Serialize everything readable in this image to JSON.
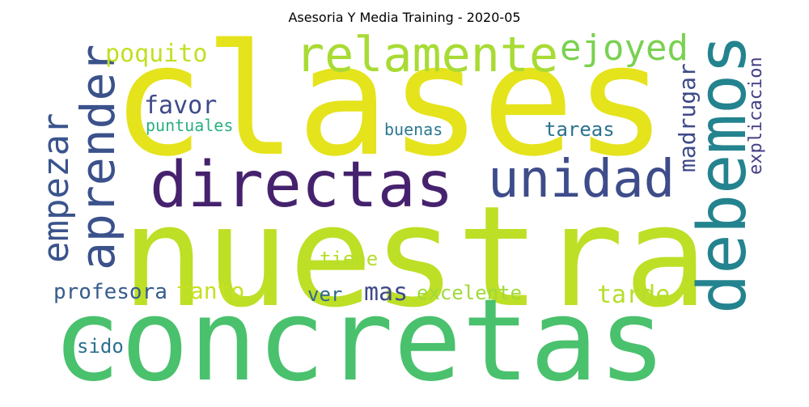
{
  "title": "Asesoria Y Media Training - 2020-05",
  "words": [
    {
      "id": "clases",
      "text": "clases",
      "color": "#e5e31c",
      "rotated": false
    },
    {
      "id": "nuestra",
      "text": "nuestra",
      "color": "#bddf26",
      "rotated": false
    },
    {
      "id": "concretas",
      "text": "concretas",
      "color": "#4ac16d",
      "rotated": false
    },
    {
      "id": "directas",
      "text": "directas",
      "color": "#46226e",
      "rotated": false
    },
    {
      "id": "debemos",
      "text": "debemos",
      "color": "#23838e",
      "rotated": true
    },
    {
      "id": "relamente",
      "text": "relamente",
      "color": "#a8db34",
      "rotated": false
    },
    {
      "id": "unidad",
      "text": "unidad",
      "color": "#3e4c8a",
      "rotated": false
    },
    {
      "id": "aprender",
      "text": "aprender",
      "color": "#3b518b",
      "rotated": true
    },
    {
      "id": "empezar",
      "text": "empezar",
      "color": "#3a548c",
      "rotated": true
    },
    {
      "id": "ejoyed",
      "text": "ejoyed",
      "color": "#7ad151",
      "rotated": false
    },
    {
      "id": "poquito",
      "text": "poquito",
      "color": "#c2df23",
      "rotated": false
    },
    {
      "id": "favor",
      "text": "favor",
      "color": "#3e4a89",
      "rotated": false
    },
    {
      "id": "puntuales",
      "text": "puntuales",
      "color": "#2ab07f",
      "rotated": false
    },
    {
      "id": "buenas",
      "text": "buenas",
      "color": "#2a788e",
      "rotated": false
    },
    {
      "id": "tareas",
      "text": "tareas",
      "color": "#2c728e",
      "rotated": false
    },
    {
      "id": "madrugar",
      "text": "madrugar",
      "color": "#3e4a89",
      "rotated": true
    },
    {
      "id": "explicacion",
      "text": "explicacion",
      "color": "#433e85",
      "rotated": true
    },
    {
      "id": "tiene",
      "text": "tiene",
      "color": "#b5de2b",
      "rotated": false
    },
    {
      "id": "profesora",
      "text": "profesora",
      "color": "#365c8d",
      "rotated": false
    },
    {
      "id": "tanto",
      "text": "tanto",
      "color": "#c8e020",
      "rotated": false
    },
    {
      "id": "ver",
      "text": "ver",
      "color": "#31688e",
      "rotated": false
    },
    {
      "id": "mas",
      "text": "mas",
      "color": "#3e4a89",
      "rotated": false
    },
    {
      "id": "excelente",
      "text": "excelente",
      "color": "#9fda3a",
      "rotated": false
    },
    {
      "id": "tarde",
      "text": "tarde",
      "color": "#b5de2b",
      "rotated": false
    },
    {
      "id": "sido",
      "text": "sido",
      "color": "#2d708e",
      "rotated": false
    }
  ]
}
